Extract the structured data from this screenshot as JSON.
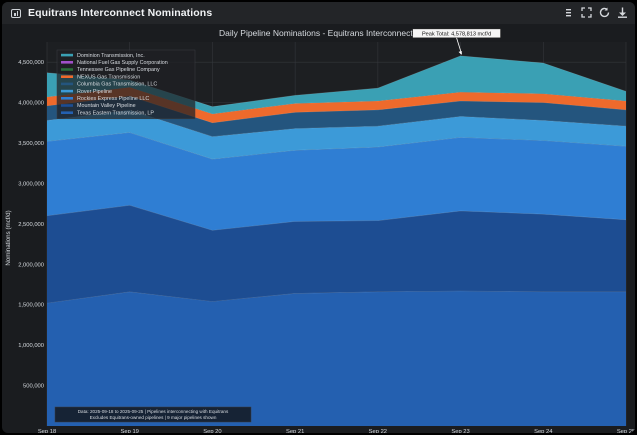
{
  "window": {
    "title": "Equitrans Interconnect Nominations"
  },
  "toolbar": {
    "menu_icon": "menu-icon",
    "expand_icon": "expand-icon",
    "refresh_icon": "refresh-icon",
    "download_icon": "download-icon"
  },
  "chart_data": {
    "type": "area",
    "stacked": true,
    "title": "Daily Pipeline Nominations - Equitrans Interconnects",
    "xlabel": "",
    "ylabel": "Nominations (mcf/d)",
    "categories": [
      "Sep 18",
      "Sep 19",
      "Sep 20",
      "Sep 21",
      "Sep 22",
      "Sep 23",
      "Sep 24",
      "Sep 25"
    ],
    "x_tick_sub": [
      "2025",
      "",
      "",
      "",
      "",
      "",
      "",
      ""
    ],
    "ylim": [
      0,
      4750000
    ],
    "yticks": [
      500000,
      1000000,
      1500000,
      2000000,
      2500000,
      3000000,
      3500000,
      4000000,
      4500000
    ],
    "ytick_labels": [
      "500,000",
      "1,000,000",
      "1,500,000",
      "2,000,000",
      "2,500,000",
      "3,000,000",
      "3,500,000",
      "4,000,000",
      "4,500,000"
    ],
    "grid": true,
    "legend_position": "top-left",
    "series": [
      {
        "name": "Texas Eastern Transmission, LP",
        "color": "#2460b0",
        "values": [
          1520000,
          1660000,
          1540000,
          1640000,
          1660000,
          1670000,
          1660000,
          1660000
        ]
      },
      {
        "name": "Mountain Valley Pipeline",
        "color": "#1d4d92",
        "values": [
          1080000,
          1070000,
          880000,
          890000,
          880000,
          990000,
          960000,
          890000
        ]
      },
      {
        "name": "Rockies Express Pipeline LLC",
        "color": "#2f7ed3",
        "values": [
          920000,
          900000,
          880000,
          880000,
          910000,
          910000,
          910000,
          910000
        ]
      },
      {
        "name": "Rover Pipeline",
        "color": "#3c9ad8",
        "values": [
          260000,
          280000,
          280000,
          270000,
          260000,
          260000,
          250000,
          250000
        ]
      },
      {
        "name": "Columbia Gas Transmission, LLC",
        "color": "#24557e",
        "values": [
          180000,
          170000,
          170000,
          200000,
          200000,
          190000,
          220000,
          200000
        ]
      },
      {
        "name": "NEXUS Gas Transmission",
        "color": "#ee6a2c",
        "values": [
          110000,
          110000,
          110000,
          110000,
          110000,
          110000,
          110000,
          110000
        ]
      },
      {
        "name": "Tennessee Gas Pipeline Company",
        "color": "#2a6e3a",
        "values": [
          0,
          0,
          0,
          0,
          0,
          0,
          0,
          0
        ]
      },
      {
        "name": "National Fuel Gas Supply Corporation",
        "color": "#a050c8",
        "values": [
          0,
          0,
          0,
          0,
          0,
          0,
          0,
          0
        ]
      },
      {
        "name": "Dominion Transmission, Inc.",
        "color": "#3aa0b4",
        "values": [
          300000,
          90000,
          90000,
          100000,
          160000,
          448813,
          380000,
          120000
        ]
      }
    ],
    "legend_order": [
      "Dominion Transmission, Inc.",
      "National Fuel Gas Supply Corporation",
      "Tennessee Gas Pipeline Company",
      "NEXUS Gas Transmission",
      "Columbia Gas Transmission, LLC",
      "Rover Pipeline",
      "Rockies Express Pipeline LLC",
      "Mountain Valley Pipeline",
      "Texas Eastern Transmission, LP"
    ],
    "annotations": [
      {
        "text": "Peak Total: 4,578,813 mcf/d",
        "category": "Sep 23",
        "value": 4578813
      }
    ],
    "footnote": [
      "Data: 2025-09-18 to 2025-09-25 | Pipelines interconnecting with Equitrans",
      "Excludes Equitrans-owned pipelines | 9 major pipelines shown"
    ]
  }
}
